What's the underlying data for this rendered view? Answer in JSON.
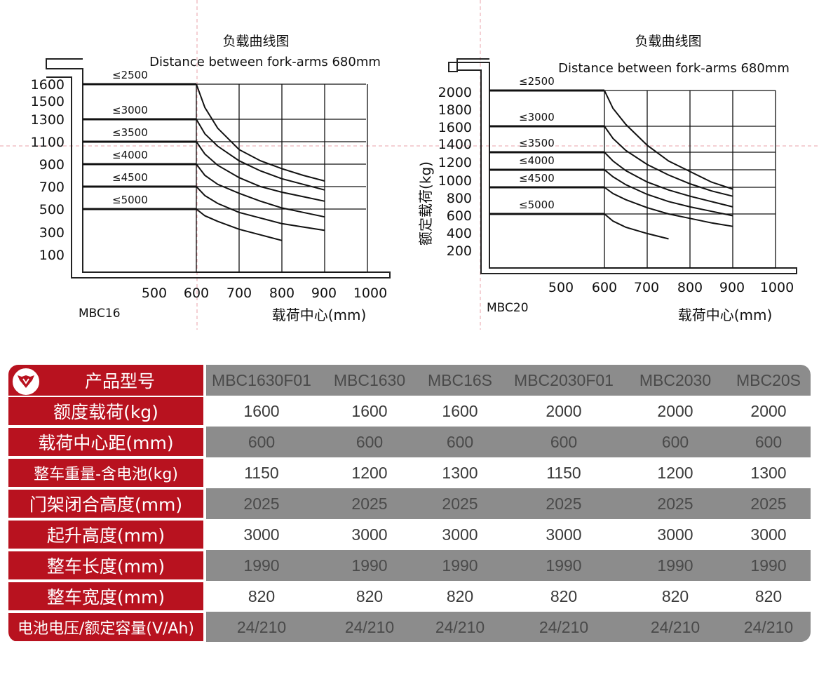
{
  "chart_data": [
    {
      "type": "line",
      "title": "负载曲线图",
      "subtitle": "Distance between fork-arms 680mm",
      "model": "MBC16",
      "xlabel": "载荷中心(mm)",
      "ylabel": "",
      "x_ticks": [
        "500",
        "600",
        "700",
        "800",
        "900",
        "1000"
      ],
      "y_ticks": [
        "1600",
        "1500",
        "1300",
        "1100",
        "900",
        "700",
        "500",
        "300",
        "100"
      ],
      "xlim": [
        500,
        1000
      ],
      "series": [
        {
          "name": "≤2500",
          "x": [
            500,
            600,
            620,
            650,
            700,
            750,
            800,
            850,
            900
          ],
          "y": [
            1600,
            1600,
            1400,
            1220,
            1030,
            930,
            860,
            800,
            750
          ]
        },
        {
          "name": "≤3000",
          "x": [
            500,
            600,
            620,
            650,
            700,
            750,
            800,
            850,
            900
          ],
          "y": [
            1300,
            1300,
            1170,
            1060,
            930,
            840,
            770,
            720,
            670
          ]
        },
        {
          "name": "≤3500",
          "x": [
            500,
            600,
            620,
            650,
            700,
            750,
            800,
            850,
            900
          ],
          "y": [
            1100,
            1100,
            990,
            890,
            780,
            700,
            650,
            610,
            570
          ]
        },
        {
          "name": "≤4000",
          "x": [
            500,
            600,
            620,
            650,
            700,
            750,
            800,
            850,
            900
          ],
          "y": [
            900,
            900,
            800,
            720,
            640,
            570,
            510,
            470,
            430
          ]
        },
        {
          "name": "≤4500",
          "x": [
            500,
            600,
            620,
            650,
            700,
            750,
            800,
            850,
            900
          ],
          "y": [
            700,
            700,
            620,
            550,
            470,
            420,
            370,
            340,
            310
          ]
        },
        {
          "name": "≤5000",
          "x": [
            500,
            600,
            620,
            650,
            700,
            750,
            800
          ],
          "y": [
            500,
            500,
            440,
            390,
            320,
            270,
            220
          ]
        }
      ]
    },
    {
      "type": "line",
      "title": "负载曲线图",
      "subtitle": "Distance between fork-arms 680mm",
      "model": "MBC20",
      "xlabel": "载荷中心(mm)",
      "ylabel": "额定载荷(kg)",
      "x_ticks": [
        "500",
        "600",
        "700",
        "800",
        "900",
        "1000"
      ],
      "y_ticks": [
        "2000",
        "1800",
        "1600",
        "1400",
        "1200",
        "1000",
        "800",
        "600",
        "400",
        "200"
      ],
      "xlim": [
        500,
        1000
      ],
      "ylim": [
        200,
        2000
      ],
      "series": [
        {
          "name": "≤2500",
          "x": [
            500,
            600,
            620,
            650,
            700,
            750,
            800,
            850,
            900
          ],
          "y": [
            2000,
            2000,
            1800,
            1620,
            1380,
            1200,
            1080,
            960,
            880
          ]
        },
        {
          "name": "≤3000",
          "x": [
            500,
            600,
            620,
            650,
            700,
            750,
            800,
            850,
            900
          ],
          "y": [
            1600,
            1600,
            1460,
            1320,
            1160,
            1040,
            940,
            860,
            800
          ]
        },
        {
          "name": "≤3500",
          "x": [
            500,
            600,
            620,
            650,
            700,
            750,
            800,
            850,
            900
          ],
          "y": [
            1300,
            1300,
            1200,
            1090,
            960,
            870,
            800,
            740,
            680
          ]
        },
        {
          "name": "≤4000",
          "x": [
            500,
            600,
            620,
            650,
            700,
            750,
            800,
            850,
            900
          ],
          "y": [
            1100,
            1100,
            1020,
            930,
            820,
            740,
            680,
            630,
            580
          ]
        },
        {
          "name": "≤4500",
          "x": [
            500,
            600,
            620,
            650,
            700,
            750,
            800,
            850,
            900
          ],
          "y": [
            900,
            900,
            830,
            760,
            670,
            600,
            550,
            500,
            460
          ]
        },
        {
          "name": "≤5000",
          "x": [
            500,
            600,
            620,
            650,
            700,
            750
          ],
          "y": [
            600,
            600,
            520,
            450,
            380,
            320
          ]
        }
      ]
    }
  ],
  "table": {
    "header_label": "产品型号",
    "models": [
      "MBC1630F01",
      "MBC1630",
      "MBC16S",
      "MBC2030F01",
      "MBC2030",
      "MBC20S"
    ],
    "rows": [
      {
        "label": "额度载荷(kg)",
        "values": [
          "1600",
          "1600",
          "1600",
          "2000",
          "2000",
          "2000"
        ]
      },
      {
        "label": "载荷中心距(mm)",
        "values": [
          "600",
          "600",
          "600",
          "600",
          "600",
          "600"
        ]
      },
      {
        "label": "整车重量-含电池(kg)",
        "values": [
          "1150",
          "1200",
          "1300",
          "1150",
          "1200",
          "1300"
        ]
      },
      {
        "label": "门架闭合高度(mm)",
        "values": [
          "2025",
          "2025",
          "2025",
          "2025",
          "2025",
          "2025"
        ]
      },
      {
        "label": "起升高度(mm)",
        "values": [
          "3000",
          "3000",
          "3000",
          "3000",
          "3000",
          "3000"
        ]
      },
      {
        "label": "整车长度(mm)",
        "values": [
          "1990",
          "1990",
          "1990",
          "1990",
          "1990",
          "1990"
        ]
      },
      {
        "label": "整车宽度(mm)",
        "values": [
          "820",
          "820",
          "820",
          "820",
          "820",
          "820"
        ]
      },
      {
        "label": "电池电压/额定容量(V/Ah)",
        "values": [
          "24/210",
          "24/210",
          "24/210",
          "24/210",
          "24/210",
          "24/210"
        ]
      }
    ]
  },
  "colors": {
    "accent_red": "#b8121f",
    "shade_gray": "#8c8c8c",
    "guide_line": "#e8a0a8"
  },
  "icons": {
    "brand_logo": "shield-wing-logo-icon"
  }
}
